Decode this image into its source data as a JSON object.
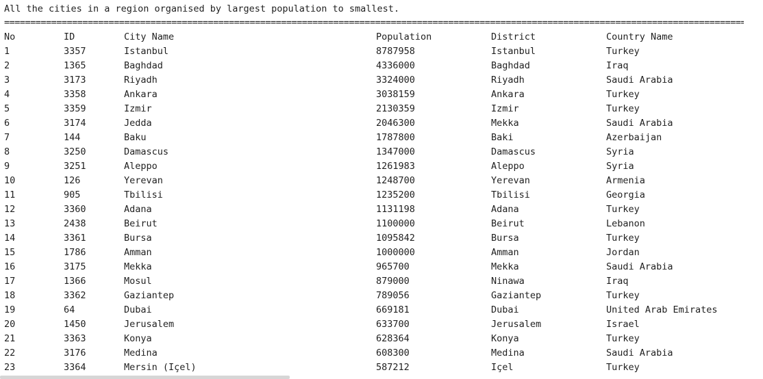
{
  "console": {
    "title": "All the cities in a region organised by largest population to smallest.",
    "separator": "========================================================================================================================================================"
  },
  "table": {
    "headers": {
      "no": "No",
      "id": "ID",
      "city": "City Name",
      "population": "Population",
      "district": "District",
      "country": "Country Name"
    },
    "rows": [
      {
        "no": "1",
        "id": "3357",
        "city": "Istanbul",
        "population": "8787958",
        "district": "Istanbul",
        "country": "Turkey"
      },
      {
        "no": "2",
        "id": "1365",
        "city": "Baghdad",
        "population": "4336000",
        "district": "Baghdad",
        "country": "Iraq"
      },
      {
        "no": "3",
        "id": "3173",
        "city": "Riyadh",
        "population": "3324000",
        "district": "Riyadh",
        "country": "Saudi Arabia"
      },
      {
        "no": "4",
        "id": "3358",
        "city": "Ankara",
        "population": "3038159",
        "district": "Ankara",
        "country": "Turkey"
      },
      {
        "no": "5",
        "id": "3359",
        "city": "Izmir",
        "population": "2130359",
        "district": "Izmir",
        "country": "Turkey"
      },
      {
        "no": "6",
        "id": "3174",
        "city": "Jedda",
        "population": "2046300",
        "district": "Mekka",
        "country": "Saudi Arabia"
      },
      {
        "no": "7",
        "id": "144",
        "city": "Baku",
        "population": "1787800",
        "district": "Baki",
        "country": "Azerbaijan"
      },
      {
        "no": "8",
        "id": "3250",
        "city": "Damascus",
        "population": "1347000",
        "district": "Damascus",
        "country": "Syria"
      },
      {
        "no": "9",
        "id": "3251",
        "city": "Aleppo",
        "population": "1261983",
        "district": "Aleppo",
        "country": "Syria"
      },
      {
        "no": "10",
        "id": "126",
        "city": "Yerevan",
        "population": "1248700",
        "district": "Yerevan",
        "country": "Armenia"
      },
      {
        "no": "11",
        "id": "905",
        "city": "Tbilisi",
        "population": "1235200",
        "district": "Tbilisi",
        "country": "Georgia"
      },
      {
        "no": "12",
        "id": "3360",
        "city": "Adana",
        "population": "1131198",
        "district": "Adana",
        "country": "Turkey"
      },
      {
        "no": "13",
        "id": "2438",
        "city": "Beirut",
        "population": "1100000",
        "district": "Beirut",
        "country": "Lebanon"
      },
      {
        "no": "14",
        "id": "3361",
        "city": "Bursa",
        "population": "1095842",
        "district": "Bursa",
        "country": "Turkey"
      },
      {
        "no": "15",
        "id": "1786",
        "city": "Amman",
        "population": "1000000",
        "district": "Amman",
        "country": "Jordan"
      },
      {
        "no": "16",
        "id": "3175",
        "city": "Mekka",
        "population": "965700",
        "district": "Mekka",
        "country": "Saudi Arabia"
      },
      {
        "no": "17",
        "id": "1366",
        "city": "Mosul",
        "population": "879000",
        "district": "Ninawa",
        "country": "Iraq"
      },
      {
        "no": "18",
        "id": "3362",
        "city": "Gaziantep",
        "population": "789056",
        "district": "Gaziantep",
        "country": "Turkey"
      },
      {
        "no": "19",
        "id": "64",
        "city": "Dubai",
        "population": "669181",
        "district": "Dubai",
        "country": "United Arab Emirates"
      },
      {
        "no": "20",
        "id": "1450",
        "city": "Jerusalem",
        "population": "633700",
        "district": "Jerusalem",
        "country": "Israel"
      },
      {
        "no": "21",
        "id": "3363",
        "city": "Konya",
        "population": "628364",
        "district": "Konya",
        "country": "Turkey"
      },
      {
        "no": "22",
        "id": "3176",
        "city": "Medina",
        "population": "608300",
        "district": "Medina",
        "country": "Saudi Arabia"
      },
      {
        "no": "23",
        "id": "3364",
        "city": "Mersin (Içel)",
        "population": "587212",
        "district": "Içel",
        "country": "Turkey"
      }
    ]
  }
}
